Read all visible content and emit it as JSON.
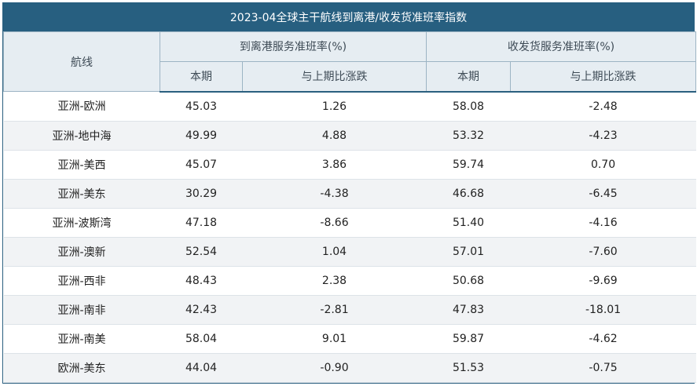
{
  "title": "2023-04全球主干航线到离港/收发货准班率指数",
  "headers": {
    "route": "航线",
    "group_arrival": "到离港服务准班率(%)",
    "group_cargo": "收发货服务准班率(%)",
    "current": "本期",
    "change": "与上期比涨跌"
  },
  "rows": [
    {
      "route": "亚洲-欧洲",
      "arr_cur": "45.03",
      "arr_chg": "1.26",
      "cargo_cur": "58.08",
      "cargo_chg": "-2.48"
    },
    {
      "route": "亚洲-地中海",
      "arr_cur": "49.99",
      "arr_chg": "4.88",
      "cargo_cur": "53.32",
      "cargo_chg": "-4.23"
    },
    {
      "route": "亚洲-美西",
      "arr_cur": "45.07",
      "arr_chg": "3.86",
      "cargo_cur": "59.74",
      "cargo_chg": "0.70"
    },
    {
      "route": "亚洲-美东",
      "arr_cur": "30.29",
      "arr_chg": "-4.38",
      "cargo_cur": "46.68",
      "cargo_chg": "-6.45"
    },
    {
      "route": "亚洲-波斯湾",
      "arr_cur": "47.18",
      "arr_chg": "-8.66",
      "cargo_cur": "51.40",
      "cargo_chg": "-4.16"
    },
    {
      "route": "亚洲-澳新",
      "arr_cur": "52.54",
      "arr_chg": "1.04",
      "cargo_cur": "57.01",
      "cargo_chg": "-7.60"
    },
    {
      "route": "亚洲-西非",
      "arr_cur": "48.43",
      "arr_chg": "2.38",
      "cargo_cur": "50.68",
      "cargo_chg": "-9.69"
    },
    {
      "route": "亚洲-南非",
      "arr_cur": "42.43",
      "arr_chg": "-2.81",
      "cargo_cur": "47.83",
      "cargo_chg": "-18.01"
    },
    {
      "route": "亚洲-南美",
      "arr_cur": "58.04",
      "arr_chg": "9.01",
      "cargo_cur": "59.87",
      "cargo_chg": "-4.62"
    },
    {
      "route": "欧洲-美东",
      "arr_cur": "44.04",
      "arr_chg": "-0.90",
      "cargo_cur": "51.53",
      "cargo_chg": "-0.75"
    }
  ]
}
